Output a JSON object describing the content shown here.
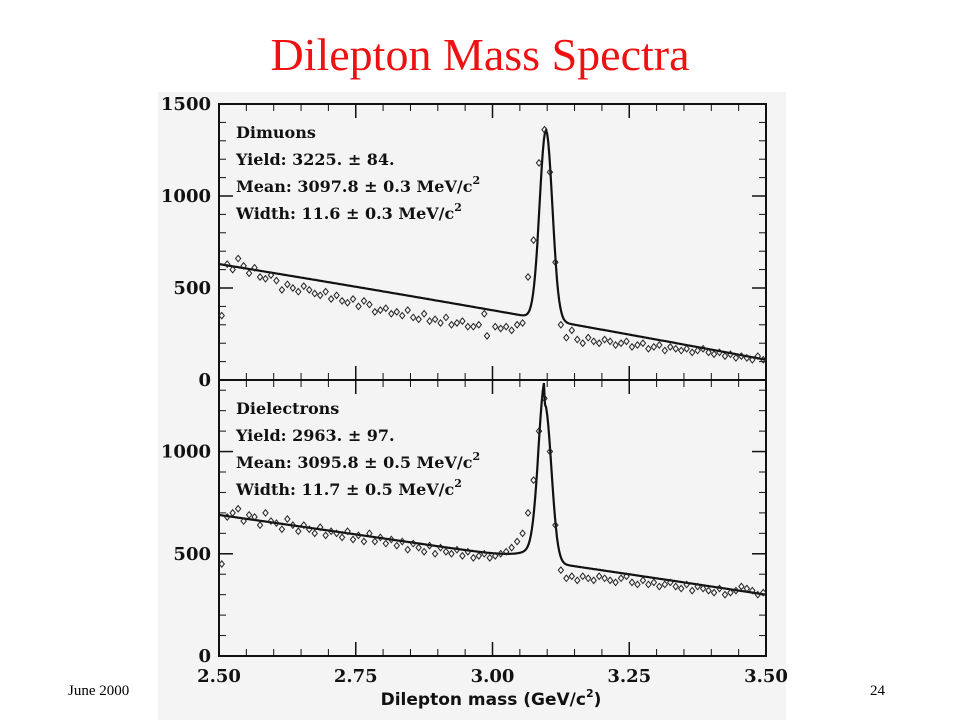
{
  "slide": {
    "title": "Dilepton Mass Spectra",
    "footer_date": "June 2000",
    "page_number": "24",
    "title_color": "#ee1111"
  },
  "chart_data": [
    {
      "type": "scatter",
      "panel": "top",
      "title": "Dimuons",
      "annotations": [
        "Yield: 3225. ±  84.",
        "Mean:  3097.8 ±  0.3 MeV/c",
        "Width:  11.6 ±  0.3 MeV/c"
      ],
      "annotation_superscripts": [
        "",
        "2",
        "2"
      ],
      "xlim": [
        2.5,
        3.5
      ],
      "ylim": [
        0,
        1500
      ],
      "y_ticks": [
        "0",
        "500",
        "1000",
        "1500"
      ],
      "fit": {
        "peak_mean": 3.0978,
        "peak_sigma": 0.0116,
        "peak_height": 1030,
        "bg_start": 630,
        "bg_end": 110,
        "bg_curve": 0.07,
        "bg_x0": 2.5,
        "bg_x1": 3.5
      },
      "points": [
        [
          2.505,
          350
        ],
        [
          2.515,
          630
        ],
        [
          2.525,
          600
        ],
        [
          2.535,
          660
        ],
        [
          2.545,
          620
        ],
        [
          2.555,
          580
        ],
        [
          2.565,
          610
        ],
        [
          2.575,
          560
        ],
        [
          2.585,
          550
        ],
        [
          2.595,
          570
        ],
        [
          2.605,
          540
        ],
        [
          2.615,
          490
        ],
        [
          2.625,
          520
        ],
        [
          2.635,
          500
        ],
        [
          2.645,
          480
        ],
        [
          2.655,
          510
        ],
        [
          2.665,
          490
        ],
        [
          2.675,
          470
        ],
        [
          2.685,
          460
        ],
        [
          2.695,
          480
        ],
        [
          2.705,
          440
        ],
        [
          2.715,
          460
        ],
        [
          2.725,
          430
        ],
        [
          2.735,
          420
        ],
        [
          2.745,
          440
        ],
        [
          2.755,
          400
        ],
        [
          2.765,
          430
        ],
        [
          2.775,
          410
        ],
        [
          2.785,
          370
        ],
        [
          2.795,
          380
        ],
        [
          2.805,
          390
        ],
        [
          2.815,
          360
        ],
        [
          2.825,
          370
        ],
        [
          2.835,
          350
        ],
        [
          2.845,
          380
        ],
        [
          2.855,
          340
        ],
        [
          2.865,
          330
        ],
        [
          2.875,
          360
        ],
        [
          2.885,
          320
        ],
        [
          2.895,
          330
        ],
        [
          2.905,
          310
        ],
        [
          2.915,
          340
        ],
        [
          2.925,
          300
        ],
        [
          2.935,
          310
        ],
        [
          2.945,
          320
        ],
        [
          2.955,
          290
        ],
        [
          2.965,
          290
        ],
        [
          2.975,
          300
        ],
        [
          2.985,
          360
        ],
        [
          2.99,
          240
        ],
        [
          3.005,
          290
        ],
        [
          3.015,
          280
        ],
        [
          3.025,
          290
        ],
        [
          3.035,
          270
        ],
        [
          3.045,
          300
        ],
        [
          3.055,
          310
        ],
        [
          3.065,
          560
        ],
        [
          3.075,
          760
        ],
        [
          3.085,
          1180
        ],
        [
          3.095,
          1360
        ],
        [
          3.105,
          1130
        ],
        [
          3.115,
          640
        ],
        [
          3.125,
          300
        ],
        [
          3.135,
          230
        ],
        [
          3.145,
          270
        ],
        [
          3.155,
          220
        ],
        [
          3.165,
          200
        ],
        [
          3.175,
          230
        ],
        [
          3.185,
          210
        ],
        [
          3.195,
          200
        ],
        [
          3.205,
          220
        ],
        [
          3.215,
          210
        ],
        [
          3.225,
          190
        ],
        [
          3.235,
          200
        ],
        [
          3.245,
          210
        ],
        [
          3.255,
          180
        ],
        [
          3.265,
          190
        ],
        [
          3.275,
          200
        ],
        [
          3.285,
          170
        ],
        [
          3.295,
          180
        ],
        [
          3.305,
          190
        ],
        [
          3.315,
          160
        ],
        [
          3.325,
          180
        ],
        [
          3.335,
          170
        ],
        [
          3.345,
          160
        ],
        [
          3.355,
          170
        ],
        [
          3.365,
          150
        ],
        [
          3.375,
          160
        ],
        [
          3.385,
          170
        ],
        [
          3.395,
          150
        ],
        [
          3.405,
          140
        ],
        [
          3.415,
          150
        ],
        [
          3.425,
          130
        ],
        [
          3.435,
          140
        ],
        [
          3.445,
          120
        ],
        [
          3.455,
          130
        ],
        [
          3.465,
          120
        ],
        [
          3.475,
          110
        ],
        [
          3.485,
          130
        ],
        [
          3.495,
          110
        ]
      ]
    },
    {
      "type": "scatter",
      "panel": "bottom",
      "title": "Dielectrons",
      "annotations": [
        "Yield: 2963. ±  97.",
        "Mean:  3095.8 ±  0.5 MeV/c",
        "Width:  11.7 ±  0.5 MeV/c"
      ],
      "annotation_superscripts": [
        "",
        "2",
        "2"
      ],
      "xlabel": "Dilepton mass (GeV/c",
      "xlabel_superscript": "2",
      "xlabel_suffix": ")",
      "x_ticks": [
        "2.50",
        "2.75",
        "3.00",
        "3.25",
        "3.50"
      ],
      "xlim": [
        2.5,
        3.5
      ],
      "ylim": [
        0,
        1350
      ],
      "y_ticks": [
        "0",
        "500",
        "1000"
      ],
      "fit": {
        "peak_mean": 3.0958,
        "peak_sigma": 0.0117,
        "peak_height": 770,
        "bg_start": 690,
        "bg_end": 300,
        "bg_curve": 0.03,
        "bg_x0": 2.5,
        "bg_x1": 3.5,
        "tail": 120
      },
      "points": [
        [
          2.505,
          450
        ],
        [
          2.515,
          680
        ],
        [
          2.525,
          700
        ],
        [
          2.535,
          720
        ],
        [
          2.545,
          660
        ],
        [
          2.555,
          690
        ],
        [
          2.565,
          680
        ],
        [
          2.575,
          640
        ],
        [
          2.585,
          700
        ],
        [
          2.595,
          660
        ],
        [
          2.605,
          650
        ],
        [
          2.615,
          620
        ],
        [
          2.625,
          670
        ],
        [
          2.635,
          640
        ],
        [
          2.645,
          610
        ],
        [
          2.655,
          640
        ],
        [
          2.665,
          620
        ],
        [
          2.675,
          600
        ],
        [
          2.685,
          630
        ],
        [
          2.695,
          590
        ],
        [
          2.705,
          610
        ],
        [
          2.715,
          600
        ],
        [
          2.725,
          580
        ],
        [
          2.735,
          610
        ],
        [
          2.745,
          570
        ],
        [
          2.755,
          590
        ],
        [
          2.765,
          560
        ],
        [
          2.775,
          600
        ],
        [
          2.785,
          560
        ],
        [
          2.795,
          580
        ],
        [
          2.805,
          550
        ],
        [
          2.815,
          570
        ],
        [
          2.825,
          540
        ],
        [
          2.835,
          560
        ],
        [
          2.845,
          520
        ],
        [
          2.855,
          550
        ],
        [
          2.865,
          530
        ],
        [
          2.875,
          510
        ],
        [
          2.885,
          540
        ],
        [
          2.895,
          500
        ],
        [
          2.905,
          530
        ],
        [
          2.915,
          510
        ],
        [
          2.925,
          500
        ],
        [
          2.935,
          520
        ],
        [
          2.945,
          490
        ],
        [
          2.955,
          510
        ],
        [
          2.965,
          480
        ],
        [
          2.975,
          490
        ],
        [
          2.985,
          500
        ],
        [
          2.995,
          480
        ],
        [
          3.005,
          490
        ],
        [
          3.015,
          500
        ],
        [
          3.025,
          510
        ],
        [
          3.035,
          530
        ],
        [
          3.045,
          560
        ],
        [
          3.055,
          600
        ],
        [
          3.065,
          700
        ],
        [
          3.075,
          860
        ],
        [
          3.085,
          1100
        ],
        [
          3.095,
          1260
        ],
        [
          3.105,
          1000
        ],
        [
          3.115,
          640
        ],
        [
          3.125,
          420
        ],
        [
          3.135,
          380
        ],
        [
          3.145,
          390
        ],
        [
          3.155,
          370
        ],
        [
          3.165,
          390
        ],
        [
          3.175,
          380
        ],
        [
          3.185,
          370
        ],
        [
          3.195,
          390
        ],
        [
          3.205,
          380
        ],
        [
          3.215,
          370
        ],
        [
          3.225,
          360
        ],
        [
          3.235,
          380
        ],
        [
          3.245,
          390
        ],
        [
          3.255,
          360
        ],
        [
          3.265,
          350
        ],
        [
          3.275,
          370
        ],
        [
          3.285,
          350
        ],
        [
          3.295,
          360
        ],
        [
          3.305,
          340
        ],
        [
          3.315,
          350
        ],
        [
          3.325,
          360
        ],
        [
          3.335,
          340
        ],
        [
          3.345,
          330
        ],
        [
          3.355,
          350
        ],
        [
          3.365,
          320
        ],
        [
          3.375,
          340
        ],
        [
          3.385,
          330
        ],
        [
          3.395,
          320
        ],
        [
          3.405,
          310
        ],
        [
          3.415,
          330
        ],
        [
          3.425,
          300
        ],
        [
          3.435,
          310
        ],
        [
          3.445,
          320
        ],
        [
          3.455,
          340
        ],
        [
          3.465,
          330
        ],
        [
          3.475,
          320
        ],
        [
          3.485,
          300
        ],
        [
          3.495,
          310
        ]
      ]
    }
  ]
}
